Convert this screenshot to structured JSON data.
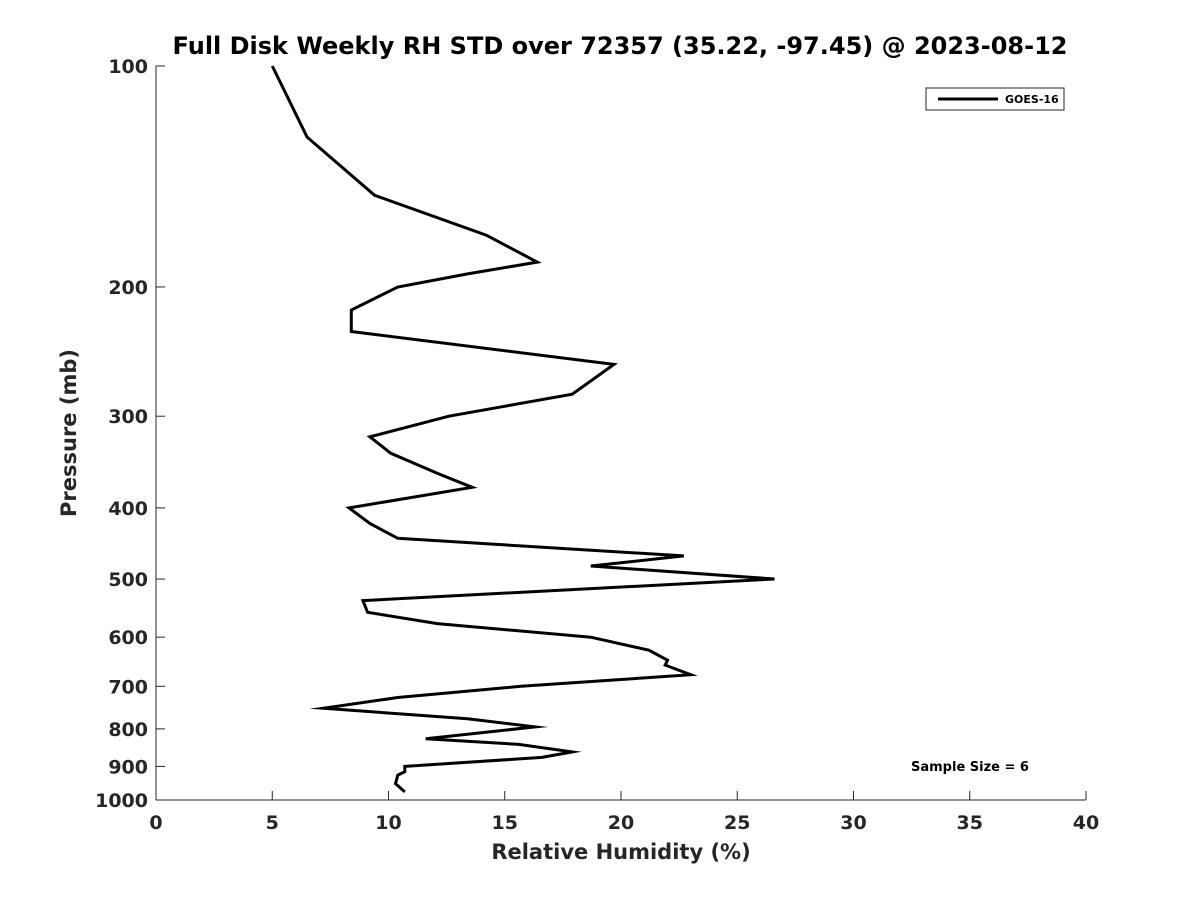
{
  "chart_data": {
    "type": "line",
    "title": "Full Disk Weekly RH STD over 72357 (35.22, -97.45) @ 2023-08-12",
    "xlabel": "Relative Humidity (%)",
    "ylabel": "Pressure (mb)",
    "xlim": [
      0,
      40
    ],
    "ylim": [
      100,
      1000
    ],
    "y_scale": "log",
    "y_reversed": true,
    "x_ticks": [
      0,
      5,
      10,
      15,
      20,
      25,
      30,
      35,
      40
    ],
    "x_tick_labels": [
      "0",
      "5",
      "10",
      "15",
      "20",
      "25",
      "30",
      "35",
      "40"
    ],
    "y_ticks": [
      100,
      200,
      300,
      400,
      500,
      600,
      700,
      800,
      900,
      1000
    ],
    "y_tick_labels": [
      "100",
      "200",
      "300",
      "400",
      "500",
      "600",
      "700",
      "800",
      "900",
      "1000"
    ],
    "grid": false,
    "legend_position": "top-right",
    "series": [
      {
        "name": "GOES-16",
        "color": "#000000",
        "points": [
          [
            5.0,
            100
          ],
          [
            6.5,
            125
          ],
          [
            9.4,
            150
          ],
          [
            14.2,
            170
          ],
          [
            16.4,
            185
          ],
          [
            13.4,
            192
          ],
          [
            10.4,
            200
          ],
          [
            8.4,
            215
          ],
          [
            8.4,
            230
          ],
          [
            19.7,
            255
          ],
          [
            17.9,
            280
          ],
          [
            12.6,
            300
          ],
          [
            9.2,
            320
          ],
          [
            10.1,
            337
          ],
          [
            12.2,
            360
          ],
          [
            13.6,
            375
          ],
          [
            8.3,
            400
          ],
          [
            9.2,
            420
          ],
          [
            10.4,
            440
          ],
          [
            22.7,
            465
          ],
          [
            18.7,
            480
          ],
          [
            26.6,
            500
          ],
          [
            8.9,
            535
          ],
          [
            9.1,
            555
          ],
          [
            12.1,
            575
          ],
          [
            18.7,
            600
          ],
          [
            21.2,
            625
          ],
          [
            22.0,
            645
          ],
          [
            21.9,
            655
          ],
          [
            23.0,
            675
          ],
          [
            15.7,
            700
          ],
          [
            10.4,
            725
          ],
          [
            7.2,
            750
          ],
          [
            13.4,
            775
          ],
          [
            16.3,
            795
          ],
          [
            11.6,
            825
          ],
          [
            15.6,
            840
          ],
          [
            17.9,
            860
          ],
          [
            16.6,
            875
          ],
          [
            10.7,
            900
          ],
          [
            10.7,
            915
          ],
          [
            10.4,
            925
          ],
          [
            10.3,
            950
          ],
          [
            10.7,
            975
          ]
        ]
      }
    ],
    "annotations": [
      {
        "text": "Sample Size = 6"
      }
    ]
  }
}
